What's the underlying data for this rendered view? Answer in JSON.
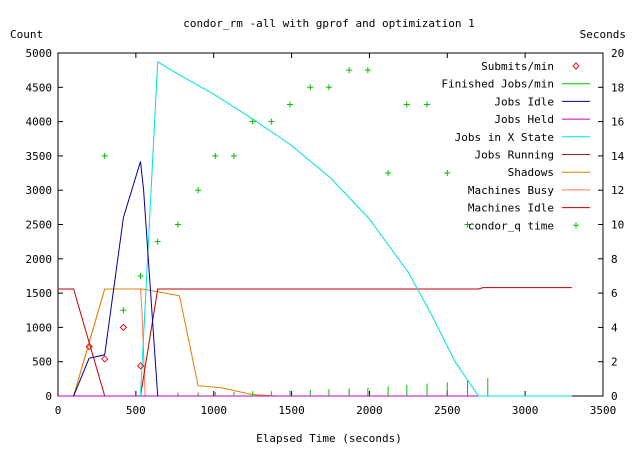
{
  "chart_data": {
    "type": "line",
    "title": "condor_rm -all with gprof and optimization 1",
    "xlabel": "Elapsed Time (seconds)",
    "ylabel": "Count",
    "y2label": "Seconds",
    "xlim": [
      0,
      3500
    ],
    "ylim": [
      0,
      5000
    ],
    "y2lim": [
      0,
      20
    ],
    "x_ticks": [
      0,
      500,
      1000,
      1500,
      2000,
      2500,
      3000,
      3500
    ],
    "y_ticks": [
      0,
      500,
      1000,
      1500,
      2000,
      2500,
      3000,
      3500,
      4000,
      4500,
      5000
    ],
    "y2_ticks": [
      0,
      2,
      4,
      6,
      8,
      10,
      12,
      14,
      16,
      18,
      20
    ],
    "grid": false,
    "legend_position": "top-right",
    "series": [
      {
        "name": "Submits/min",
        "color": "#e0161b",
        "style": "diamond",
        "axis": "y",
        "x": [
          200,
          300,
          420,
          530
        ],
        "y": [
          720,
          540,
          1000,
          440
        ]
      },
      {
        "name": "Finished Jobs/min",
        "color": "#00c000",
        "style": "impulse",
        "axis": "y",
        "x": [
          770,
          900,
          1010,
          1130,
          1250,
          1370,
          1490,
          1620,
          1740,
          1870,
          1990,
          2120,
          2240,
          2370,
          2500,
          2630,
          2760
        ],
        "y": [
          50,
          50,
          60,
          60,
          70,
          70,
          80,
          90,
          100,
          110,
          120,
          140,
          160,
          180,
          200,
          230,
          260
        ]
      },
      {
        "name": "Jobs Idle",
        "color": "#0000a0",
        "style": "line",
        "axis": "y",
        "x": [
          100,
          200,
          300,
          420,
          530,
          550,
          640
        ],
        "y": [
          0,
          550,
          600,
          2600,
          3420,
          3000,
          0
        ]
      },
      {
        "name": "Jobs Held",
        "color": "#c000c0",
        "style": "line",
        "axis": "y",
        "x": [
          0,
          3300
        ],
        "y": [
          0,
          0
        ]
      },
      {
        "name": "Jobs in X State",
        "color": "#00e0e0",
        "style": "line",
        "axis": "y",
        "x": [
          530,
          640,
          750,
          1000,
          1250,
          1500,
          1750,
          2000,
          2250,
          2400,
          2550,
          2700,
          2790,
          3300
        ],
        "y": [
          0,
          4870,
          4720,
          4400,
          4040,
          3650,
          3180,
          2580,
          1800,
          1180,
          500,
          0,
          0,
          0
        ]
      },
      {
        "name": "Jobs Running",
        "color": "#8b2a1f",
        "style": "line",
        "axis": "y",
        "x": [
          100,
          530,
          640,
          3300
        ],
        "y": [
          0,
          0,
          0,
          0
        ]
      },
      {
        "name": "Shadows",
        "color": "#e08000",
        "style": "line",
        "axis": "y",
        "x": [
          100,
          300,
          540,
          640,
          780,
          900,
          1050,
          1250,
          1400,
          3300
        ],
        "y": [
          0,
          1560,
          1560,
          1520,
          1460,
          150,
          120,
          20,
          0,
          0
        ]
      },
      {
        "name": "Machines Busy",
        "color": "#ff7a50",
        "style": "line",
        "axis": "y",
        "x": [
          100,
          300,
          530,
          540,
          560,
          3300
        ],
        "y": [
          0,
          1560,
          1560,
          1200,
          0,
          0
        ]
      },
      {
        "name": "Machines Idle",
        "color": "#c00000",
        "style": "line",
        "axis": "y",
        "x": [
          0,
          100,
          300,
          530,
          640,
          2700,
          2730,
          3300
        ],
        "y": [
          1560,
          1560,
          0,
          0,
          1560,
          1560,
          1580,
          1580
        ]
      },
      {
        "name": "condor_q time",
        "color": "#00c000",
        "style": "plus",
        "axis": "y2",
        "x": [
          300,
          420,
          530,
          640,
          770,
          900,
          1010,
          1130,
          1250,
          1370,
          1490,
          1620,
          1740,
          1870,
          1990,
          2120,
          2240,
          2370,
          2500,
          2630
        ],
        "y": [
          14,
          5,
          7,
          9,
          10,
          12,
          14,
          14,
          16,
          16,
          17,
          18,
          18,
          19,
          19,
          13,
          17,
          17,
          13,
          10
        ]
      }
    ]
  }
}
